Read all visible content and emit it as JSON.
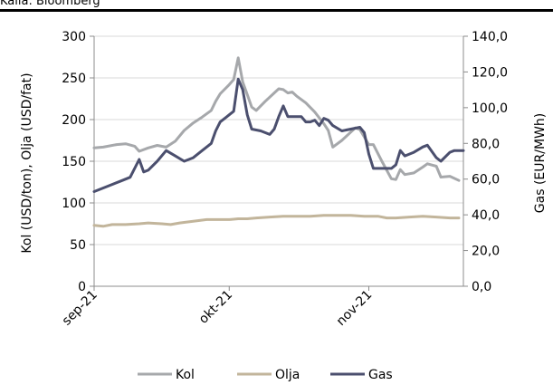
{
  "caption": "Källa: Bloomberg",
  "chart_data": {
    "type": "line",
    "title": "",
    "ylabel": "Kol (USD/ton), Olja (USD/fat)",
    "y2label": "Gas (EUR/MWh)",
    "ylim": [
      0,
      300
    ],
    "y2lim": [
      0,
      140
    ],
    "yticks": [
      "0",
      "50",
      "100",
      "150",
      "200",
      "250",
      "300"
    ],
    "y2ticks": [
      "0,0",
      "20,0",
      "40,0",
      "60,0",
      "80,0",
      "100,0",
      "120,0",
      "140,0"
    ],
    "xlim": [
      "2021-09-01",
      "2021-11-22"
    ],
    "xticks": [
      {
        "date": "2021-09-01",
        "label": "sep-21"
      },
      {
        "date": "2021-10-01",
        "label": "okt-21"
      },
      {
        "date": "2021-11-01",
        "label": "nov-21"
      }
    ],
    "grid": "horizontal",
    "legend_position": "bottom",
    "series": [
      {
        "name": "Kol",
        "axis": "left",
        "color": "#a6a8ab",
        "points": [
          [
            "2021-09-01",
            166
          ],
          [
            "2021-09-03",
            167
          ],
          [
            "2021-09-06",
            170
          ],
          [
            "2021-09-08",
            171
          ],
          [
            "2021-09-10",
            168
          ],
          [
            "2021-09-11",
            162
          ],
          [
            "2021-09-13",
            166
          ],
          [
            "2021-09-15",
            169
          ],
          [
            "2021-09-17",
            167
          ],
          [
            "2021-09-19",
            174
          ],
          [
            "2021-09-21",
            187
          ],
          [
            "2021-09-23",
            196
          ],
          [
            "2021-09-25",
            203
          ],
          [
            "2021-09-27",
            211
          ],
          [
            "2021-09-28",
            222
          ],
          [
            "2021-09-29",
            231
          ],
          [
            "2021-10-01",
            242
          ],
          [
            "2021-10-02",
            248
          ],
          [
            "2021-10-03",
            274
          ],
          [
            "2021-10-04",
            245
          ],
          [
            "2021-10-05",
            230
          ],
          [
            "2021-10-06",
            215
          ],
          [
            "2021-10-07",
            211
          ],
          [
            "2021-10-09",
            222
          ],
          [
            "2021-10-11",
            232
          ],
          [
            "2021-10-12",
            237
          ],
          [
            "2021-10-13",
            236
          ],
          [
            "2021-10-14",
            232
          ],
          [
            "2021-10-15",
            233
          ],
          [
            "2021-10-16",
            228
          ],
          [
            "2021-10-18",
            220
          ],
          [
            "2021-10-20",
            209
          ],
          [
            "2021-10-22",
            195
          ],
          [
            "2021-10-23",
            187
          ],
          [
            "2021-10-24",
            167
          ],
          [
            "2021-10-26",
            175
          ],
          [
            "2021-10-28",
            185
          ],
          [
            "2021-10-29",
            190
          ],
          [
            "2021-10-30",
            188
          ],
          [
            "2021-11-01",
            170
          ],
          [
            "2021-11-02",
            170
          ],
          [
            "2021-11-04",
            149
          ],
          [
            "2021-11-06",
            129
          ],
          [
            "2021-11-07",
            128
          ],
          [
            "2021-11-08",
            140
          ],
          [
            "2021-11-09",
            134
          ],
          [
            "2021-11-11",
            136
          ],
          [
            "2021-11-13",
            143
          ],
          [
            "2021-11-14",
            147
          ],
          [
            "2021-11-16",
            144
          ],
          [
            "2021-11-17",
            131
          ],
          [
            "2021-11-19",
            132
          ],
          [
            "2021-11-21",
            127
          ]
        ]
      },
      {
        "name": "Olja",
        "axis": "left",
        "color": "#c2b59b",
        "points": [
          [
            "2021-09-01",
            73
          ],
          [
            "2021-09-03",
            72
          ],
          [
            "2021-09-05",
            74
          ],
          [
            "2021-09-08",
            74
          ],
          [
            "2021-09-11",
            75
          ],
          [
            "2021-09-13",
            76
          ],
          [
            "2021-09-16",
            75
          ],
          [
            "2021-09-18",
            74
          ],
          [
            "2021-09-20",
            76
          ],
          [
            "2021-09-23",
            78
          ],
          [
            "2021-09-26",
            80
          ],
          [
            "2021-09-29",
            80
          ],
          [
            "2021-10-01",
            80
          ],
          [
            "2021-10-03",
            81
          ],
          [
            "2021-10-05",
            81
          ],
          [
            "2021-10-07",
            82
          ],
          [
            "2021-10-10",
            83
          ],
          [
            "2021-10-13",
            84
          ],
          [
            "2021-10-16",
            84
          ],
          [
            "2021-10-19",
            84
          ],
          [
            "2021-10-22",
            85
          ],
          [
            "2021-10-25",
            85
          ],
          [
            "2021-10-28",
            85
          ],
          [
            "2021-10-31",
            84
          ],
          [
            "2021-11-03",
            84
          ],
          [
            "2021-11-05",
            82
          ],
          [
            "2021-11-07",
            82
          ],
          [
            "2021-11-10",
            83
          ],
          [
            "2021-11-13",
            84
          ],
          [
            "2021-11-16",
            83
          ],
          [
            "2021-11-19",
            82
          ],
          [
            "2021-11-21",
            82
          ]
        ]
      },
      {
        "name": "Gas",
        "axis": "right",
        "color": "#4b4f6e",
        "points": [
          [
            "2021-09-01",
            53
          ],
          [
            "2021-09-04",
            56
          ],
          [
            "2021-09-07",
            59
          ],
          [
            "2021-09-09",
            61
          ],
          [
            "2021-09-11",
            71
          ],
          [
            "2021-09-12",
            64
          ],
          [
            "2021-09-13",
            65
          ],
          [
            "2021-09-15",
            70
          ],
          [
            "2021-09-17",
            76
          ],
          [
            "2021-09-19",
            73
          ],
          [
            "2021-09-21",
            70
          ],
          [
            "2021-09-23",
            72
          ],
          [
            "2021-09-25",
            76
          ],
          [
            "2021-09-27",
            80
          ],
          [
            "2021-09-28",
            87
          ],
          [
            "2021-09-29",
            92
          ],
          [
            "2021-09-30",
            94
          ],
          [
            "2021-10-01",
            96
          ],
          [
            "2021-10-02",
            98
          ],
          [
            "2021-10-03",
            116
          ],
          [
            "2021-10-04",
            110
          ],
          [
            "2021-10-05",
            96
          ],
          [
            "2021-10-06",
            88
          ],
          [
            "2021-10-08",
            87
          ],
          [
            "2021-10-10",
            85
          ],
          [
            "2021-10-11",
            88
          ],
          [
            "2021-10-12",
            95
          ],
          [
            "2021-10-13",
            101
          ],
          [
            "2021-10-14",
            95
          ],
          [
            "2021-10-17",
            95
          ],
          [
            "2021-10-18",
            92
          ],
          [
            "2021-10-19",
            92
          ],
          [
            "2021-10-20",
            93
          ],
          [
            "2021-10-21",
            90
          ],
          [
            "2021-10-22",
            94
          ],
          [
            "2021-10-23",
            93
          ],
          [
            "2021-10-24",
            90
          ],
          [
            "2021-10-26",
            87
          ],
          [
            "2021-10-28",
            88
          ],
          [
            "2021-10-30",
            89
          ],
          [
            "2021-10-31",
            86
          ],
          [
            "2021-11-01",
            74
          ],
          [
            "2021-11-02",
            66
          ],
          [
            "2021-11-04",
            66
          ],
          [
            "2021-11-06",
            66
          ],
          [
            "2021-11-07",
            68
          ],
          [
            "2021-11-08",
            76
          ],
          [
            "2021-11-09",
            73
          ],
          [
            "2021-11-11",
            75
          ],
          [
            "2021-11-13",
            78
          ],
          [
            "2021-11-14",
            79
          ],
          [
            "2021-11-16",
            72
          ],
          [
            "2021-11-17",
            70
          ],
          [
            "2021-11-19",
            75
          ],
          [
            "2021-11-20",
            76
          ],
          [
            "2021-11-22",
            76
          ]
        ]
      }
    ]
  }
}
